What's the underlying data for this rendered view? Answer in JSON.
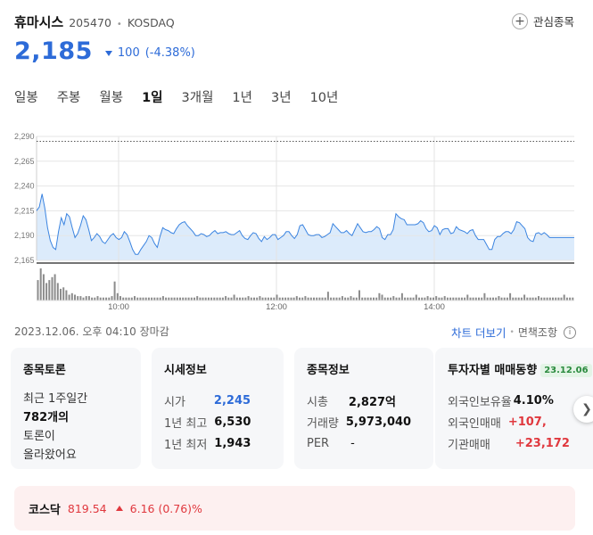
{
  "stock": {
    "name": "휴마시스",
    "code": "205470",
    "separator": "•",
    "market": "KOSDAQ",
    "price": "2,185",
    "change": "100",
    "change_pct": "(-4.38%)",
    "watch_label": "관심종목"
  },
  "tabs": [
    "일봉",
    "주봉",
    "월봉",
    "1일",
    "3개월",
    "1년",
    "3년",
    "10년"
  ],
  "active_tab": "1일",
  "colors": {
    "down": "#2d6bd8",
    "up": "#e0383e",
    "chart_line": "#3b84e0",
    "chart_fill": "#dcebfb",
    "volume": "#8c8c8c"
  },
  "chart_data": {
    "type": "line",
    "y_ticks": [
      "2,290",
      "2,265",
      "2,240",
      "2,215",
      "2,190",
      "2,165"
    ],
    "x_ticks": [
      "10:00",
      "12:00",
      "14:00"
    ],
    "ylim": [
      2165,
      2290
    ],
    "reference_line": 2285,
    "series": [
      {
        "values": [
          2215,
          2219,
          2232,
          2218,
          2198,
          2185,
          2178,
          2176,
          2194,
          2208,
          2201,
          2212,
          2209,
          2198,
          2188,
          2192,
          2200,
          2210,
          2206,
          2196,
          2185,
          2188,
          2192,
          2189,
          2184,
          2182,
          2186,
          2190,
          2192,
          2188,
          2186,
          2188,
          2194,
          2191,
          2184,
          2176,
          2171,
          2171,
          2176,
          2180,
          2184,
          2190,
          2188,
          2182,
          2178,
          2189,
          2198,
          2196,
          2195,
          2193,
          2192,
          2197,
          2201,
          2203,
          2204,
          2200,
          2197,
          2194,
          2190,
          2190,
          2192,
          2191,
          2189,
          2190,
          2193,
          2195,
          2192,
          2193,
          2193,
          2194,
          2192,
          2191,
          2191,
          2193,
          2195,
          2190,
          2187,
          2186,
          2190,
          2193,
          2192,
          2187,
          2184,
          2189,
          2186,
          2188,
          2191,
          2191,
          2186,
          2188,
          2190,
          2194,
          2194,
          2190,
          2187,
          2191,
          2200,
          2201,
          2196,
          2191,
          2190,
          2190,
          2191,
          2191,
          2188,
          2189,
          2191,
          2193,
          2202,
          2199,
          2196,
          2193,
          2193,
          2195,
          2192,
          2190,
          2196,
          2202,
          2198,
          2194,
          2193,
          2194,
          2194,
          2196,
          2199,
          2197,
          2188,
          2186,
          2191,
          2191,
          2196,
          2212,
          2209,
          2207,
          2206,
          2201,
          2201,
          2201,
          2201,
          2202,
          2205,
          2203,
          2197,
          2194,
          2195,
          2200,
          2198,
          2191,
          2196,
          2197,
          2197,
          2192,
          2193,
          2199,
          2196,
          2195,
          2194,
          2192,
          2195,
          2196,
          2190,
          2186,
          2186,
          2186,
          2181,
          2176,
          2176,
          2186,
          2189,
          2189,
          2192,
          2194,
          2194,
          2192,
          2196,
          2204,
          2203,
          2200,
          2197,
          2188,
          2185,
          2184,
          2192,
          2193,
          2191,
          2193,
          2191,
          2188,
          2188,
          2188,
          2188,
          2188,
          2188,
          2188,
          2188,
          2188,
          2188
        ]
      }
    ],
    "volume": [
      14,
      22,
      18,
      12,
      14,
      16,
      18,
      12,
      8,
      9,
      7,
      4,
      5,
      4,
      3,
      3,
      2,
      3,
      3,
      2,
      2,
      3,
      2,
      2,
      2,
      2,
      3,
      13,
      5,
      3,
      2,
      2,
      2,
      2,
      3,
      2,
      2,
      2,
      2,
      2,
      2,
      2,
      2,
      2,
      3,
      2,
      2,
      2,
      2,
      2,
      2,
      2,
      2,
      2,
      2,
      2,
      3,
      2,
      2,
      2,
      2,
      2,
      2,
      2,
      2,
      2,
      3,
      2,
      2,
      4,
      2,
      2,
      2,
      2,
      3,
      2,
      2,
      2,
      3,
      2,
      2,
      2,
      2,
      2,
      4,
      2,
      2,
      2,
      2,
      2,
      2,
      3,
      2,
      2,
      3,
      2,
      2,
      2,
      2,
      2,
      2,
      2,
      6,
      2,
      2,
      2,
      2,
      3,
      2,
      2,
      3,
      2,
      2,
      7,
      2,
      2,
      2,
      2,
      2,
      2,
      5,
      4,
      2,
      2,
      2,
      3,
      2,
      2,
      5,
      2,
      2,
      2,
      2,
      4,
      2,
      2,
      2,
      3,
      2,
      2,
      3,
      2,
      2,
      3,
      2,
      2,
      2,
      2,
      2,
      2,
      2,
      4,
      2,
      2,
      2,
      2,
      2,
      5,
      2,
      2,
      2,
      2,
      3,
      2,
      2,
      2,
      5,
      2,
      2,
      2,
      2,
      4,
      2,
      2,
      2,
      2,
      3,
      2,
      2,
      2,
      2,
      2,
      2,
      2,
      2,
      4,
      2,
      2,
      2
    ]
  },
  "timestamp": "2023.12.06. 오후 04:10 장마감",
  "more_chart": "차트 더보기",
  "disclaimer": "면책조항",
  "cards": {
    "discussion": {
      "title": "종목토론",
      "lines": [
        "최근 1주일간",
        "782개의",
        "토론이",
        "올라왔어요"
      ]
    },
    "market_info": {
      "title": "시세정보",
      "rows": [
        {
          "k": "시가",
          "v": "2,245"
        },
        {
          "k": "1년 최고",
          "v": "6,530"
        },
        {
          "k": "1년 최저",
          "v": "1,943"
        }
      ]
    },
    "stock_info": {
      "title": "종목정보",
      "rows": [
        {
          "k": "시총",
          "v": "2,827억"
        },
        {
          "k": "거래량",
          "v": "5,973,040"
        },
        {
          "k": "PER",
          "v": "-"
        }
      ]
    },
    "investor": {
      "title": "투자자별 매매동향",
      "date": "23.12.06",
      "rows": [
        {
          "k": "외국인보유율",
          "v": "4.10%"
        },
        {
          "k": "외국인매매",
          "v": "+107,"
        },
        {
          "k": "기관매매",
          "v": "+23,172"
        }
      ]
    }
  },
  "index": {
    "name": "코스닥",
    "value": "819.54",
    "change": "6.16 (0.76)%"
  }
}
